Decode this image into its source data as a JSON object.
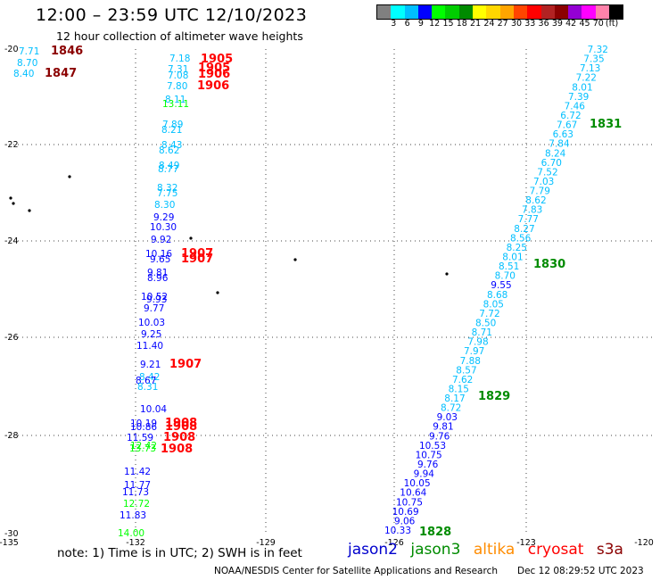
{
  "header": {
    "title": "12:00 – 23:59 UTC 12/10/2023",
    "subtitle": "12 hour collection of altimeter wave heights"
  },
  "legend": {
    "colors": [
      "#808080",
      "#00ffff",
      "#00bfff",
      "#0000ff",
      "#00ff00",
      "#00cd00",
      "#008b00",
      "#ffff00",
      "#ffd700",
      "#ffa500",
      "#ff4500",
      "#ff0000",
      "#b22222",
      "#8b0000",
      "#9400d3",
      "#ff00ff",
      "#ff82ab",
      "#000000"
    ],
    "labels": [
      "3",
      "6",
      "9",
      "12",
      "15",
      "18",
      "21",
      "24",
      "27",
      "30",
      "33",
      "36",
      "39",
      "42",
      "45",
      "70",
      "(ft)"
    ],
    "unit": "(ft)"
  },
  "axes": {
    "lat_labels": [
      "-20",
      "-22",
      "-24",
      "-26",
      "-28",
      "-30"
    ],
    "lon_labels": [
      "-135",
      "-132",
      "-129",
      "-126",
      "-123",
      "-120"
    ]
  },
  "tracks": {
    "left": [
      {
        "v": "7.71",
        "c": "#00bfff"
      },
      {
        "v": "8.70",
        "c": "#00bfff"
      },
      {
        "v": "8.40",
        "c": "#00bfff"
      }
    ],
    "west": [
      {
        "v": "7.18",
        "c": "#00bfff"
      },
      {
        "v": "7.31",
        "c": "#00bfff"
      },
      {
        "v": "7.08",
        "c": "#00bfff"
      },
      {
        "v": "7.80",
        "c": "#00bfff"
      },
      {
        "v": "8.11",
        "c": "#00bfff"
      },
      {
        "v": "13.11",
        "c": "#00ff00"
      },
      {
        "v": "7.89",
        "c": "#00bfff"
      },
      {
        "v": "8.21",
        "c": "#00bfff"
      },
      {
        "v": "8.43",
        "c": "#00bfff"
      },
      {
        "v": "8.62",
        "c": "#00bfff"
      },
      {
        "v": "8.49",
        "c": "#00bfff"
      },
      {
        "v": "8.77",
        "c": "#00bfff"
      },
      {
        "v": "8.32",
        "c": "#00bfff"
      },
      {
        "v": "7.75",
        "c": "#00bfff"
      },
      {
        "v": "8.30",
        "c": "#00bfff"
      },
      {
        "v": "9.29",
        "c": "#0000ff"
      },
      {
        "v": "10.30",
        "c": "#0000ff"
      },
      {
        "v": "9.92",
        "c": "#0000ff"
      },
      {
        "v": "10.16",
        "c": "#0000ff"
      },
      {
        "v": "9.65",
        "c": "#0000ff"
      },
      {
        "v": "9.81",
        "c": "#0000ff"
      },
      {
        "v": "8.96",
        "c": "#0000ff"
      },
      {
        "v": "10.52",
        "c": "#0000ff"
      },
      {
        "v": "9.93",
        "c": "#0000ff"
      },
      {
        "v": "9.77",
        "c": "#0000ff"
      },
      {
        "v": "10.03",
        "c": "#0000ff"
      },
      {
        "v": "9.25",
        "c": "#0000ff"
      },
      {
        "v": "11.40",
        "c": "#0000ff"
      },
      {
        "v": "9.21",
        "c": "#0000ff"
      },
      {
        "v": "8.42",
        "c": "#00bfff"
      },
      {
        "v": "8.67",
        "c": "#0000ff"
      },
      {
        "v": "8.31",
        "c": "#00bfff"
      },
      {
        "v": "10.04",
        "c": "#0000ff"
      },
      {
        "v": "10.19",
        "c": "#0000ff"
      },
      {
        "v": "10.86",
        "c": "#0000ff"
      },
      {
        "v": "11.59",
        "c": "#0000ff"
      },
      {
        "v": "12.42",
        "c": "#00ff00"
      },
      {
        "v": "13.73",
        "c": "#00ff00"
      },
      {
        "v": "11.42",
        "c": "#0000ff"
      },
      {
        "v": "11.77",
        "c": "#0000ff"
      },
      {
        "v": "11.73",
        "c": "#0000ff"
      },
      {
        "v": "12.72",
        "c": "#00ff00"
      },
      {
        "v": "11.83",
        "c": "#0000ff"
      },
      {
        "v": "14.00",
        "c": "#00ff00"
      }
    ],
    "east": [
      {
        "v": "7.32",
        "c": "#00bfff"
      },
      {
        "v": "7.35",
        "c": "#00bfff"
      },
      {
        "v": "7.13",
        "c": "#00bfff"
      },
      {
        "v": "7.22",
        "c": "#00bfff"
      },
      {
        "v": "8.01",
        "c": "#00bfff"
      },
      {
        "v": "7.39",
        "c": "#00bfff"
      },
      {
        "v": "7.46",
        "c": "#00bfff"
      },
      {
        "v": "6.72",
        "c": "#00bfff"
      },
      {
        "v": "7.67",
        "c": "#00bfff"
      },
      {
        "v": "6.63",
        "c": "#00bfff"
      },
      {
        "v": "7.84",
        "c": "#00bfff"
      },
      {
        "v": "8.24",
        "c": "#00bfff"
      },
      {
        "v": "6.70",
        "c": "#00bfff"
      },
      {
        "v": "7.52",
        "c": "#00bfff"
      },
      {
        "v": "7.03",
        "c": "#00bfff"
      },
      {
        "v": "7.79",
        "c": "#00bfff"
      },
      {
        "v": "8.62",
        "c": "#00bfff"
      },
      {
        "v": "7.83",
        "c": "#00bfff"
      },
      {
        "v": "7.77",
        "c": "#00bfff"
      },
      {
        "v": "8.27",
        "c": "#00bfff"
      },
      {
        "v": "8.56",
        "c": "#00bfff"
      },
      {
        "v": "8.25",
        "c": "#00bfff"
      },
      {
        "v": "8.01",
        "c": "#00bfff"
      },
      {
        "v": "8.51",
        "c": "#00bfff"
      },
      {
        "v": "8.70",
        "c": "#00bfff"
      },
      {
        "v": "9.55",
        "c": "#0000ff"
      },
      {
        "v": "8.68",
        "c": "#00bfff"
      },
      {
        "v": "8.05",
        "c": "#00bfff"
      },
      {
        "v": "7.72",
        "c": "#00bfff"
      },
      {
        "v": "8.50",
        "c": "#00bfff"
      },
      {
        "v": "8.71",
        "c": "#00bfff"
      },
      {
        "v": "7.98",
        "c": "#00bfff"
      },
      {
        "v": "7.97",
        "c": "#00bfff"
      },
      {
        "v": "7.88",
        "c": "#00bfff"
      },
      {
        "v": "8.57",
        "c": "#00bfff"
      },
      {
        "v": "7.62",
        "c": "#00bfff"
      },
      {
        "v": "8.15",
        "c": "#00bfff"
      },
      {
        "v": "8.17",
        "c": "#00bfff"
      },
      {
        "v": "8.72",
        "c": "#00bfff"
      },
      {
        "v": "9.03",
        "c": "#0000ff"
      },
      {
        "v": "9.81",
        "c": "#0000ff"
      },
      {
        "v": "9.76",
        "c": "#0000ff"
      },
      {
        "v": "10.53",
        "c": "#0000ff"
      },
      {
        "v": "10.75",
        "c": "#0000ff"
      },
      {
        "v": "9.76",
        "c": "#0000ff"
      },
      {
        "v": "9.94",
        "c": "#0000ff"
      },
      {
        "v": "10.05",
        "c": "#0000ff"
      },
      {
        "v": "10.64",
        "c": "#0000ff"
      },
      {
        "v": "10.75",
        "c": "#0000ff"
      },
      {
        "v": "10.69",
        "c": "#0000ff"
      },
      {
        "v": "9.06",
        "c": "#0000ff"
      },
      {
        "v": "10.33",
        "c": "#0000ff"
      }
    ]
  },
  "times": {
    "left": [
      {
        "t": "1846",
        "c": "#8b0000"
      },
      {
        "t": "1847",
        "c": "#8b0000"
      }
    ],
    "west": [
      {
        "t": "1905",
        "c": "#ff0000"
      },
      {
        "t": "1905",
        "c": "#ff0000"
      },
      {
        "t": "1906",
        "c": "#ff0000"
      },
      {
        "t": "1906",
        "c": "#ff0000"
      },
      {
        "t": "1907",
        "c": "#ff0000"
      },
      {
        "t": "1907",
        "c": "#ff0000"
      },
      {
        "t": "1907",
        "c": "#ff0000"
      },
      {
        "t": "1908",
        "c": "#ff0000"
      },
      {
        "t": "1908",
        "c": "#ff0000"
      },
      {
        "t": "1908",
        "c": "#ff0000"
      },
      {
        "t": "1908",
        "c": "#ff0000"
      }
    ],
    "east": [
      {
        "t": "1831",
        "c": "#008b00"
      },
      {
        "t": "1830",
        "c": "#008b00"
      },
      {
        "t": "1829",
        "c": "#008b00"
      },
      {
        "t": "1828",
        "c": "#008b00"
      }
    ]
  },
  "footer": {
    "note": "note:  1) Time is in UTC;  2) SWH is in feet",
    "satellites": [
      {
        "name": "jason2",
        "color": "#0000cd"
      },
      {
        "name": "jason3",
        "color": "#008b00"
      },
      {
        "name": "altika",
        "color": "#ff8c00"
      },
      {
        "name": "cryosat",
        "color": "#ff0000"
      },
      {
        "name": "s3a",
        "color": "#8b0000"
      }
    ],
    "credit": "NOAA/NESDIS Center for Satellite Applications and Research",
    "timestamp": "Dec 12 08:29:52 UTC 2023"
  }
}
